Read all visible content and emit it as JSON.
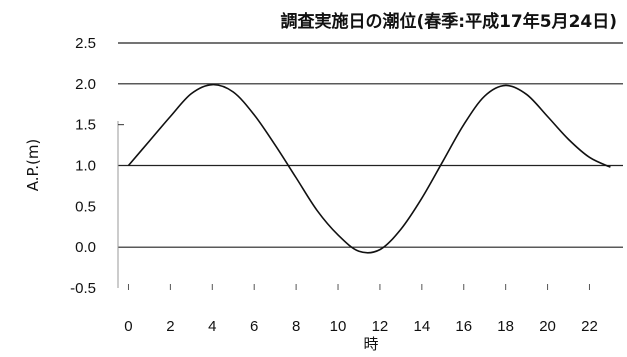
{
  "chart_data": {
    "type": "line",
    "title": "調査実施日の潮位(春季:平成17年5月24日)",
    "xlabel": "時",
    "ylabel": "A.P.(m)",
    "xlim": [
      -0.5,
      23.6
    ],
    "ylim": [
      -0.5,
      2.5
    ],
    "x_ticks": [
      "0",
      "2",
      "4",
      "6",
      "8",
      "10",
      "12",
      "14",
      "16",
      "18",
      "20",
      "22"
    ],
    "y_ticks": [
      "2.5",
      "2.0",
      "1.5",
      "1.0",
      "0.5",
      "0.0",
      "-0.5"
    ],
    "gridlines_y": [
      2.5,
      2.0,
      1.0,
      0.0
    ],
    "series": [
      {
        "x": [
          0,
          1,
          2,
          3,
          4,
          5,
          6,
          7,
          8,
          9,
          10,
          11,
          12,
          13,
          14,
          15,
          16,
          17,
          18,
          19,
          20,
          21,
          22,
          23
        ],
        "y": [
          1.0,
          1.3,
          1.6,
          1.88,
          1.99,
          1.9,
          1.62,
          1.25,
          0.85,
          0.45,
          0.15,
          -0.05,
          -0.03,
          0.22,
          0.6,
          1.05,
          1.5,
          1.85,
          1.98,
          1.87,
          1.6,
          1.32,
          1.1,
          0.98
        ]
      }
    ]
  }
}
